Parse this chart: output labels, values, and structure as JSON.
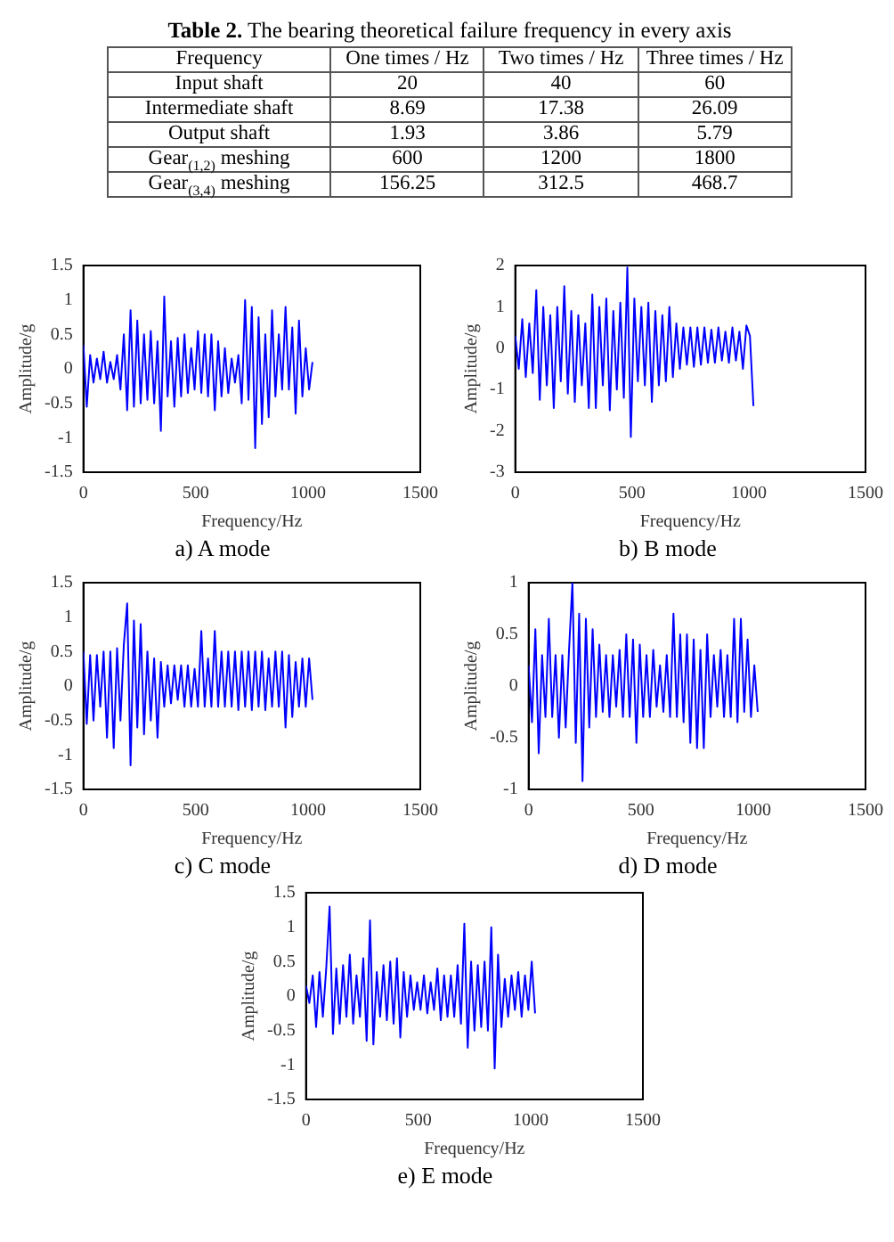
{
  "chart_data": [
    {
      "type": "other",
      "title": "Table 2. The bearing theoretical failure frequency in every axis",
      "annotations": [
        "Frequency",
        "One times / Hz",
        "Two times / Hz",
        "Three times / Hz",
        "Input shaft",
        "20",
        "40",
        "60",
        "Intermediate shaft",
        "8.69",
        "17.38",
        "26.09",
        "Output shaft",
        "1.93",
        "3.86",
        "5.79",
        "Gear$_{(1,2)}$ meshing",
        "600",
        "1200",
        "1800",
        "Gear$_{(3,4)}$ meshing",
        "156.25",
        "312.5",
        "468.7"
      ]
    },
    {
      "type": "line",
      "title": "a) A mode",
      "xlabel": "Frequency/Hz",
      "ylabel": "Amplitude/g",
      "color": "#0000ff",
      "grid": false,
      "xlim": [
        0,
        1500
      ],
      "xticks": [
        0,
        500,
        1000,
        1500
      ],
      "ylim": [
        -1.5,
        1.5
      ],
      "yticks": [
        -1.5,
        -1,
        -0.5,
        0,
        0.5,
        1,
        1.5
      ],
      "x": [
        0,
        15,
        30,
        45,
        60,
        75,
        90,
        105,
        120,
        135,
        150,
        165,
        180,
        195,
        210,
        225,
        240,
        255,
        270,
        285,
        300,
        315,
        330,
        345,
        360,
        375,
        390,
        405,
        420,
        435,
        450,
        465,
        480,
        495,
        510,
        525,
        540,
        555,
        570,
        585,
        600,
        615,
        630,
        645,
        660,
        675,
        690,
        705,
        720,
        735,
        750,
        765,
        780,
        795,
        810,
        825,
        840,
        855,
        870,
        885,
        900,
        915,
        930,
        945,
        960,
        975,
        990,
        1005,
        1020
      ],
      "values": [
        0.35,
        -0.55,
        0.2,
        -0.2,
        0.15,
        -0.15,
        0.25,
        -0.2,
        0.1,
        -0.15,
        0.2,
        -0.3,
        0.5,
        -0.6,
        0.85,
        -0.55,
        0.7,
        -0.5,
        0.5,
        -0.45,
        0.55,
        -0.5,
        0.4,
        -0.9,
        1.05,
        -0.4,
        0.4,
        -0.55,
        0.45,
        -0.4,
        0.5,
        -0.35,
        0.3,
        -0.3,
        0.55,
        -0.35,
        0.5,
        -0.4,
        0.5,
        -0.6,
        0.4,
        -0.4,
        0.3,
        -0.35,
        0.15,
        -0.2,
        0.2,
        -0.5,
        1.0,
        -0.45,
        0.9,
        -1.15,
        0.75,
        -0.8,
        0.5,
        -0.7,
        0.85,
        -0.4,
        0.5,
        -0.3,
        0.9,
        -0.3,
        0.6,
        -0.65,
        0.7,
        -0.4,
        0.3,
        -0.3,
        0.1
      ]
    },
    {
      "type": "line",
      "title": "b) B mode",
      "xlabel": "Frequency/Hz",
      "ylabel": "Amplitude/g",
      "color": "#0000ff",
      "grid": false,
      "xlim": [
        0,
        1500
      ],
      "xticks": [
        0,
        500,
        1000,
        1500
      ],
      "ylim": [
        -3,
        2
      ],
      "yticks": [
        -3,
        -2,
        -1,
        0,
        1,
        2
      ],
      "x": [
        0,
        15,
        30,
        45,
        60,
        75,
        90,
        105,
        120,
        135,
        150,
        165,
        180,
        195,
        210,
        225,
        240,
        255,
        270,
        285,
        300,
        315,
        330,
        345,
        360,
        375,
        390,
        405,
        420,
        435,
        450,
        465,
        480,
        495,
        510,
        525,
        540,
        555,
        570,
        585,
        600,
        615,
        630,
        645,
        660,
        675,
        690,
        705,
        720,
        735,
        750,
        765,
        780,
        795,
        810,
        825,
        840,
        855,
        870,
        885,
        900,
        915,
        930,
        945,
        960,
        975,
        990,
        1005,
        1020
      ],
      "values": [
        0.3,
        -0.5,
        0.7,
        -0.7,
        0.6,
        -0.6,
        1.4,
        -1.25,
        1.0,
        -0.9,
        0.8,
        -1.45,
        1.0,
        -0.8,
        1.5,
        -1.1,
        0.9,
        -1.3,
        0.8,
        -0.9,
        0.6,
        -1.45,
        1.3,
        -1.45,
        1.0,
        -0.9,
        1.2,
        -1.5,
        0.9,
        -1.0,
        1.1,
        -1.2,
        1.95,
        -2.15,
        1.2,
        -0.8,
        1.0,
        -0.9,
        1.1,
        -1.3,
        0.9,
        -0.9,
        0.8,
        -0.8,
        1.0,
        -0.7,
        0.6,
        -0.5,
        0.5,
        -0.4,
        0.5,
        -0.45,
        0.5,
        -0.4,
        0.5,
        -0.35,
        0.45,
        -0.35,
        0.5,
        -0.3,
        0.4,
        -0.35,
        0.5,
        -0.3,
        0.4,
        -0.5,
        0.55,
        0.3,
        -1.4
      ]
    },
    {
      "type": "line",
      "title": "c) C mode",
      "xlabel": "Frequency/Hz",
      "ylabel": "Amplitude/g",
      "color": "#0000ff",
      "grid": false,
      "xlim": [
        0,
        1500
      ],
      "xticks": [
        0,
        500,
        1000,
        1500
      ],
      "ylim": [
        -1.5,
        1.5
      ],
      "yticks": [
        -1.5,
        -1,
        -0.5,
        0,
        0.5,
        1,
        1.5
      ],
      "x": [
        0,
        15,
        30,
        45,
        60,
        75,
        90,
        105,
        120,
        135,
        150,
        165,
        180,
        195,
        210,
        225,
        240,
        255,
        270,
        285,
        300,
        315,
        330,
        345,
        360,
        375,
        390,
        405,
        420,
        435,
        450,
        465,
        480,
        495,
        510,
        525,
        540,
        555,
        570,
        585,
        600,
        615,
        630,
        645,
        660,
        675,
        690,
        705,
        720,
        735,
        750,
        765,
        780,
        795,
        810,
        825,
        840,
        855,
        870,
        885,
        900,
        915,
        930,
        945,
        960,
        975,
        990,
        1005,
        1020
      ],
      "values": [
        0.5,
        -0.55,
        0.45,
        -0.5,
        0.45,
        -0.3,
        0.5,
        -0.75,
        0.5,
        -0.9,
        0.55,
        -0.5,
        0.6,
        1.2,
        -1.15,
        0.95,
        -0.6,
        0.9,
        -0.7,
        0.5,
        -0.5,
        0.4,
        -0.75,
        0.35,
        -0.3,
        0.3,
        -0.25,
        0.3,
        -0.2,
        0.3,
        -0.3,
        0.3,
        -0.3,
        0.25,
        -0.3,
        0.8,
        -0.3,
        0.4,
        -0.3,
        0.8,
        -0.3,
        0.5,
        -0.3,
        0.5,
        -0.3,
        0.5,
        -0.35,
        0.5,
        -0.3,
        0.5,
        -0.35,
        0.5,
        -0.3,
        0.5,
        -0.35,
        0.4,
        -0.3,
        0.5,
        -0.3,
        0.5,
        -0.6,
        0.45,
        -0.45,
        0.35,
        -0.3,
        0.4,
        -0.3,
        0.4,
        -0.2
      ]
    },
    {
      "type": "line",
      "title": "d) D mode",
      "xlabel": "Frequency/Hz",
      "ylabel": "Amplitude/g",
      "color": "#0000ff",
      "grid": false,
      "xlim": [
        0,
        1500
      ],
      "xticks": [
        0,
        500,
        1000,
        1500
      ],
      "ylim": [
        -1,
        1
      ],
      "yticks": [
        -1,
        -0.5,
        0,
        0.5,
        1
      ],
      "x": [
        0,
        15,
        30,
        45,
        60,
        75,
        90,
        105,
        120,
        135,
        150,
        165,
        180,
        195,
        210,
        225,
        240,
        255,
        270,
        285,
        300,
        315,
        330,
        345,
        360,
        375,
        390,
        405,
        420,
        435,
        450,
        465,
        480,
        495,
        510,
        525,
        540,
        555,
        570,
        585,
        600,
        615,
        630,
        645,
        660,
        675,
        690,
        705,
        720,
        735,
        750,
        765,
        780,
        795,
        810,
        825,
        840,
        855,
        870,
        885,
        900,
        915,
        930,
        945,
        960,
        975,
        990,
        1005,
        1020
      ],
      "values": [
        0.2,
        -0.35,
        0.55,
        -0.65,
        0.3,
        -0.3,
        0.65,
        -0.3,
        0.3,
        -0.5,
        0.3,
        -0.4,
        0.35,
        1.0,
        -0.55,
        0.7,
        -0.92,
        0.65,
        -0.4,
        0.55,
        -0.3,
        0.4,
        -0.25,
        0.3,
        -0.3,
        0.3,
        -0.2,
        0.35,
        -0.3,
        0.5,
        -0.3,
        0.45,
        -0.55,
        0.4,
        -0.3,
        0.3,
        -0.3,
        0.35,
        -0.2,
        0.2,
        -0.25,
        0.3,
        -0.3,
        0.7,
        -0.3,
        0.5,
        -0.35,
        0.5,
        -0.55,
        0.45,
        -0.6,
        0.35,
        -0.6,
        0.5,
        -0.3,
        0.3,
        -0.2,
        0.35,
        -0.3,
        0.3,
        -0.3,
        0.65,
        -0.35,
        0.65,
        -0.25,
        0.45,
        -0.3,
        0.2,
        -0.25
      ]
    },
    {
      "type": "line",
      "title": "e) E mode",
      "xlabel": "Frequency/Hz",
      "ylabel": "Amplitude/g",
      "color": "#0000ff",
      "grid": false,
      "xlim": [
        0,
        1500
      ],
      "xticks": [
        0,
        500,
        1000,
        1500
      ],
      "ylim": [
        -1.5,
        1.5
      ],
      "yticks": [
        -1.5,
        -1,
        -0.5,
        0,
        0.5,
        1,
        1.5
      ],
      "x": [
        0,
        15,
        30,
        45,
        60,
        75,
        90,
        105,
        120,
        135,
        150,
        165,
        180,
        195,
        210,
        225,
        240,
        255,
        270,
        285,
        300,
        315,
        330,
        345,
        360,
        375,
        390,
        405,
        420,
        435,
        450,
        465,
        480,
        495,
        510,
        525,
        540,
        555,
        570,
        585,
        600,
        615,
        630,
        645,
        660,
        675,
        690,
        705,
        720,
        735,
        750,
        765,
        780,
        795,
        810,
        825,
        840,
        855,
        870,
        885,
        900,
        915,
        930,
        945,
        960,
        975,
        990,
        1005,
        1020
      ],
      "values": [
        0.15,
        -0.1,
        0.3,
        -0.45,
        0.35,
        -0.3,
        0.4,
        1.3,
        -0.55,
        0.4,
        -0.4,
        0.45,
        -0.3,
        0.6,
        -0.4,
        0.3,
        -0.3,
        0.55,
        -0.65,
        1.1,
        -0.7,
        0.35,
        -0.3,
        0.45,
        -0.35,
        0.5,
        -0.4,
        0.55,
        -0.6,
        0.35,
        -0.3,
        0.3,
        -0.2,
        0.2,
        -0.2,
        0.3,
        -0.25,
        0.2,
        -0.2,
        0.4,
        -0.35,
        0.3,
        -0.3,
        0.3,
        -0.3,
        0.45,
        -0.4,
        1.05,
        -0.75,
        0.5,
        -0.5,
        0.45,
        -0.45,
        0.5,
        -0.5,
        1.0,
        -1.05,
        0.6,
        -0.45,
        0.25,
        -0.3,
        0.3,
        -0.2,
        0.35,
        -0.3,
        0.3,
        -0.2,
        0.5,
        -0.25
      ]
    }
  ]
}
